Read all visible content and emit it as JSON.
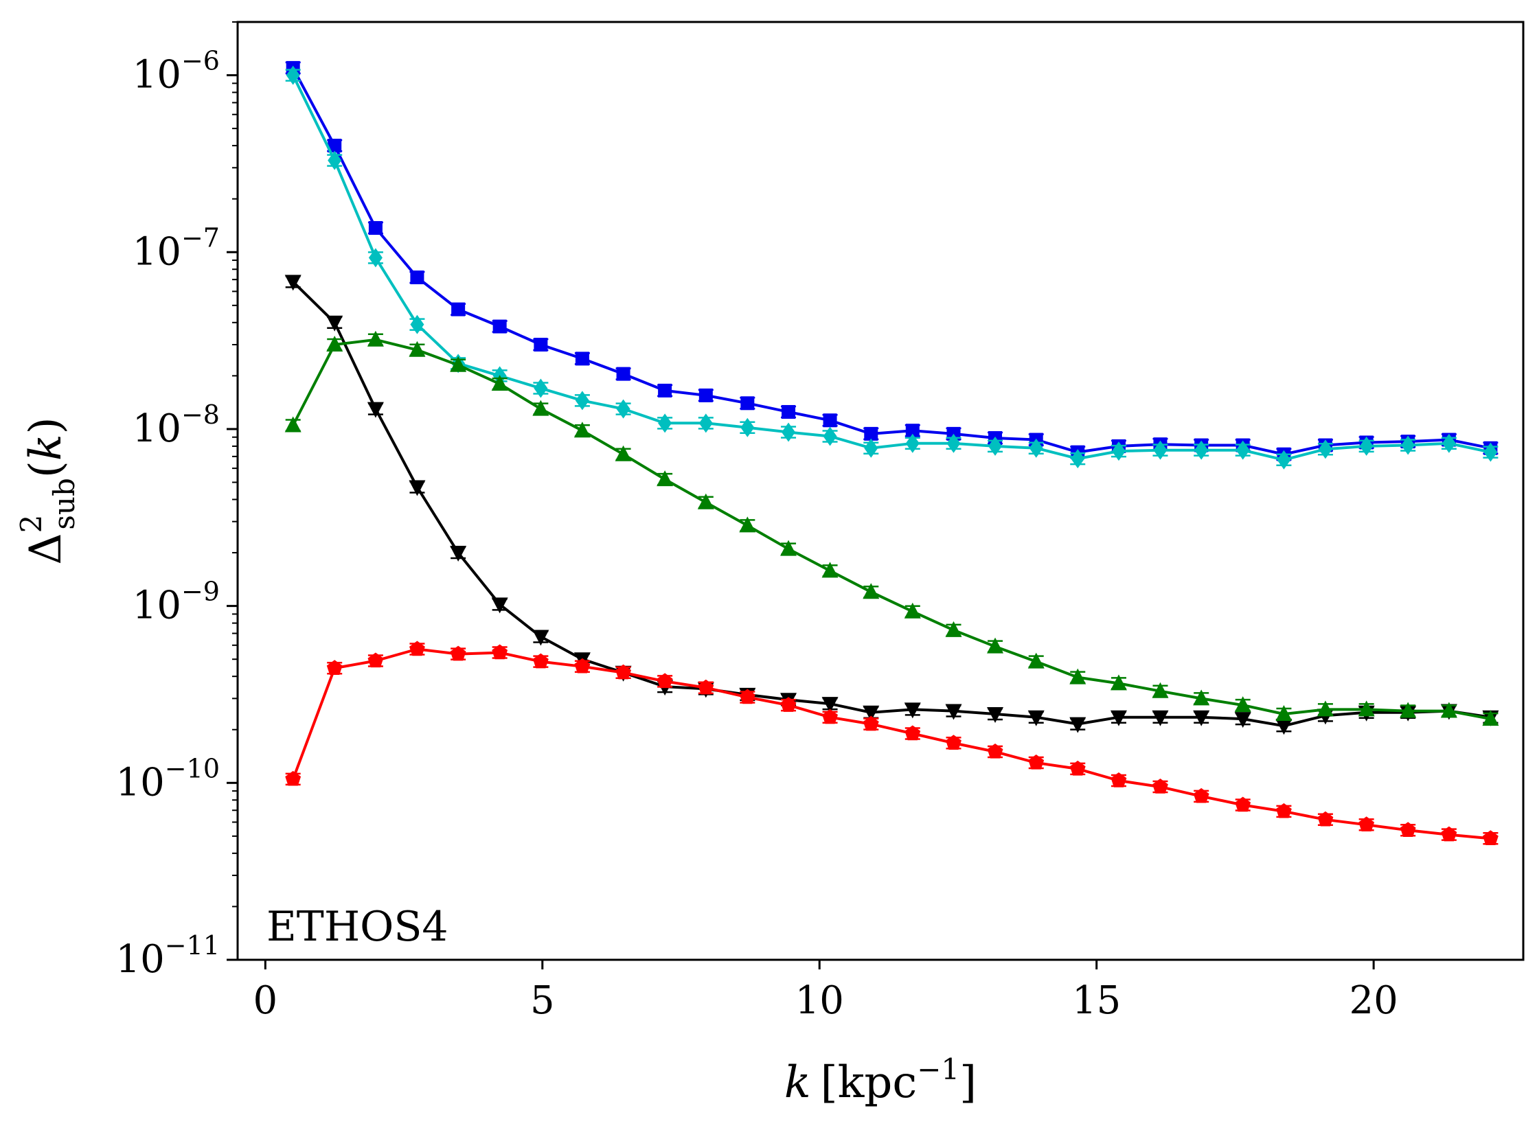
{
  "chart_data": {
    "type": "line",
    "xlabel": "k [kpc^-1]",
    "ylabel": "Δ²_sub(k)",
    "annotation": "ETHOS4",
    "xlim": [
      -0.5,
      22.7
    ],
    "ylim": [
      1e-11,
      2e-06
    ],
    "yscale": "log",
    "grid": false,
    "x_ticks": [
      0,
      5,
      10,
      15,
      20
    ],
    "x_tick_labels": [
      "0",
      "5",
      "10",
      "15",
      "20"
    ],
    "y_ticks": [
      {
        "value": 1e-06,
        "base": "10",
        "exp": "−6"
      },
      {
        "value": 1e-07,
        "base": "10",
        "exp": "−7"
      },
      {
        "value": 1e-08,
        "base": "10",
        "exp": "−8"
      },
      {
        "value": 1e-09,
        "base": "10",
        "exp": "−9"
      },
      {
        "value": 1e-10,
        "base": "10",
        "exp": "−10"
      },
      {
        "value": 1e-11,
        "base": "10",
        "exp": "−11"
      }
    ],
    "x": [
      0.5,
      1.25,
      1.99,
      2.74,
      3.48,
      4.23,
      4.97,
      5.72,
      6.46,
      7.21,
      7.95,
      8.7,
      9.44,
      10.19,
      10.93,
      11.68,
      12.42,
      13.17,
      13.91,
      14.66,
      15.4,
      16.15,
      16.89,
      17.64,
      18.38,
      19.13,
      19.87,
      20.62,
      21.36,
      22.11
    ],
    "series": [
      {
        "color": "#0000ee",
        "marker": "square",
        "values": [
          1.1e-06,
          4e-07,
          1.37e-07,
          7.2e-08,
          4.75e-08,
          3.8e-08,
          3e-08,
          2.5e-08,
          2.05e-08,
          1.65e-08,
          1.55e-08,
          1.4e-08,
          1.25e-08,
          1.12e-08,
          9.4e-09,
          9.8e-09,
          9.4e-09,
          8.9e-09,
          8.7e-09,
          7.4e-09,
          8e-09,
          8.2e-09,
          8.1e-09,
          8.1e-09,
          7.2e-09,
          8.1e-09,
          8.4e-09,
          8.5e-09,
          8.7e-09,
          7.8e-09
        ]
      },
      {
        "color": "#00bfbf",
        "marker": "diamond",
        "values": [
          1e-06,
          3.3e-07,
          9.3e-08,
          3.9e-08,
          2.35e-08,
          2e-08,
          1.7e-08,
          1.45e-08,
          1.3e-08,
          1.08e-08,
          1.08e-08,
          1.02e-08,
          9.6e-09,
          9.1e-09,
          7.8e-09,
          8.3e-09,
          8.3e-09,
          8e-09,
          7.8e-09,
          6.8e-09,
          7.5e-09,
          7.6e-09,
          7.6e-09,
          7.6e-09,
          6.7e-09,
          7.7e-09,
          8e-09,
          8.1e-09,
          8.3e-09,
          7.4e-09
        ]
      },
      {
        "color": "#000000",
        "marker": "triangle-down",
        "values": [
          6.8e-08,
          4e-08,
          1.3e-08,
          4.7e-09,
          2e-09,
          1.02e-09,
          6.7e-10,
          5e-10,
          4.2e-10,
          3.5e-10,
          3.4e-10,
          3.15e-10,
          2.95e-10,
          2.8e-10,
          2.5e-10,
          2.6e-10,
          2.55e-10,
          2.45e-10,
          2.35e-10,
          2.15e-10,
          2.35e-10,
          2.35e-10,
          2.35e-10,
          2.3e-10,
          2.1e-10,
          2.4e-10,
          2.5e-10,
          2.5e-10,
          2.55e-10,
          2.35e-10
        ]
      },
      {
        "color": "#007f00",
        "marker": "triangle-up",
        "values": [
          1.05e-08,
          3e-08,
          3.2e-08,
          2.8e-08,
          2.3e-08,
          1.8e-08,
          1.3e-08,
          9.8e-09,
          7.2e-09,
          5.2e-09,
          3.85e-09,
          2.85e-09,
          2.1e-09,
          1.58e-09,
          1.2e-09,
          9.3e-10,
          7.3e-10,
          5.9e-10,
          4.85e-10,
          3.95e-10,
          3.65e-10,
          3.3e-10,
          3e-10,
          2.75e-10,
          2.45e-10,
          2.6e-10,
          2.6e-10,
          2.55e-10,
          2.55e-10,
          2.3e-10
        ]
      },
      {
        "color": "#ff0000",
        "marker": "pentagon",
        "values": [
          1.05e-10,
          4.45e-10,
          4.9e-10,
          5.7e-10,
          5.35e-10,
          5.45e-10,
          4.85e-10,
          4.55e-10,
          4.2e-10,
          3.75e-10,
          3.45e-10,
          3.05e-10,
          2.75e-10,
          2.35e-10,
          2.15e-10,
          1.9e-10,
          1.68e-10,
          1.5e-10,
          1.3e-10,
          1.2e-10,
          1.03e-10,
          9.5e-11,
          8.4e-11,
          7.5e-11,
          6.9e-11,
          6.2e-11,
          5.8e-11,
          5.4e-11,
          5.1e-11,
          4.85e-11
        ]
      }
    ]
  }
}
